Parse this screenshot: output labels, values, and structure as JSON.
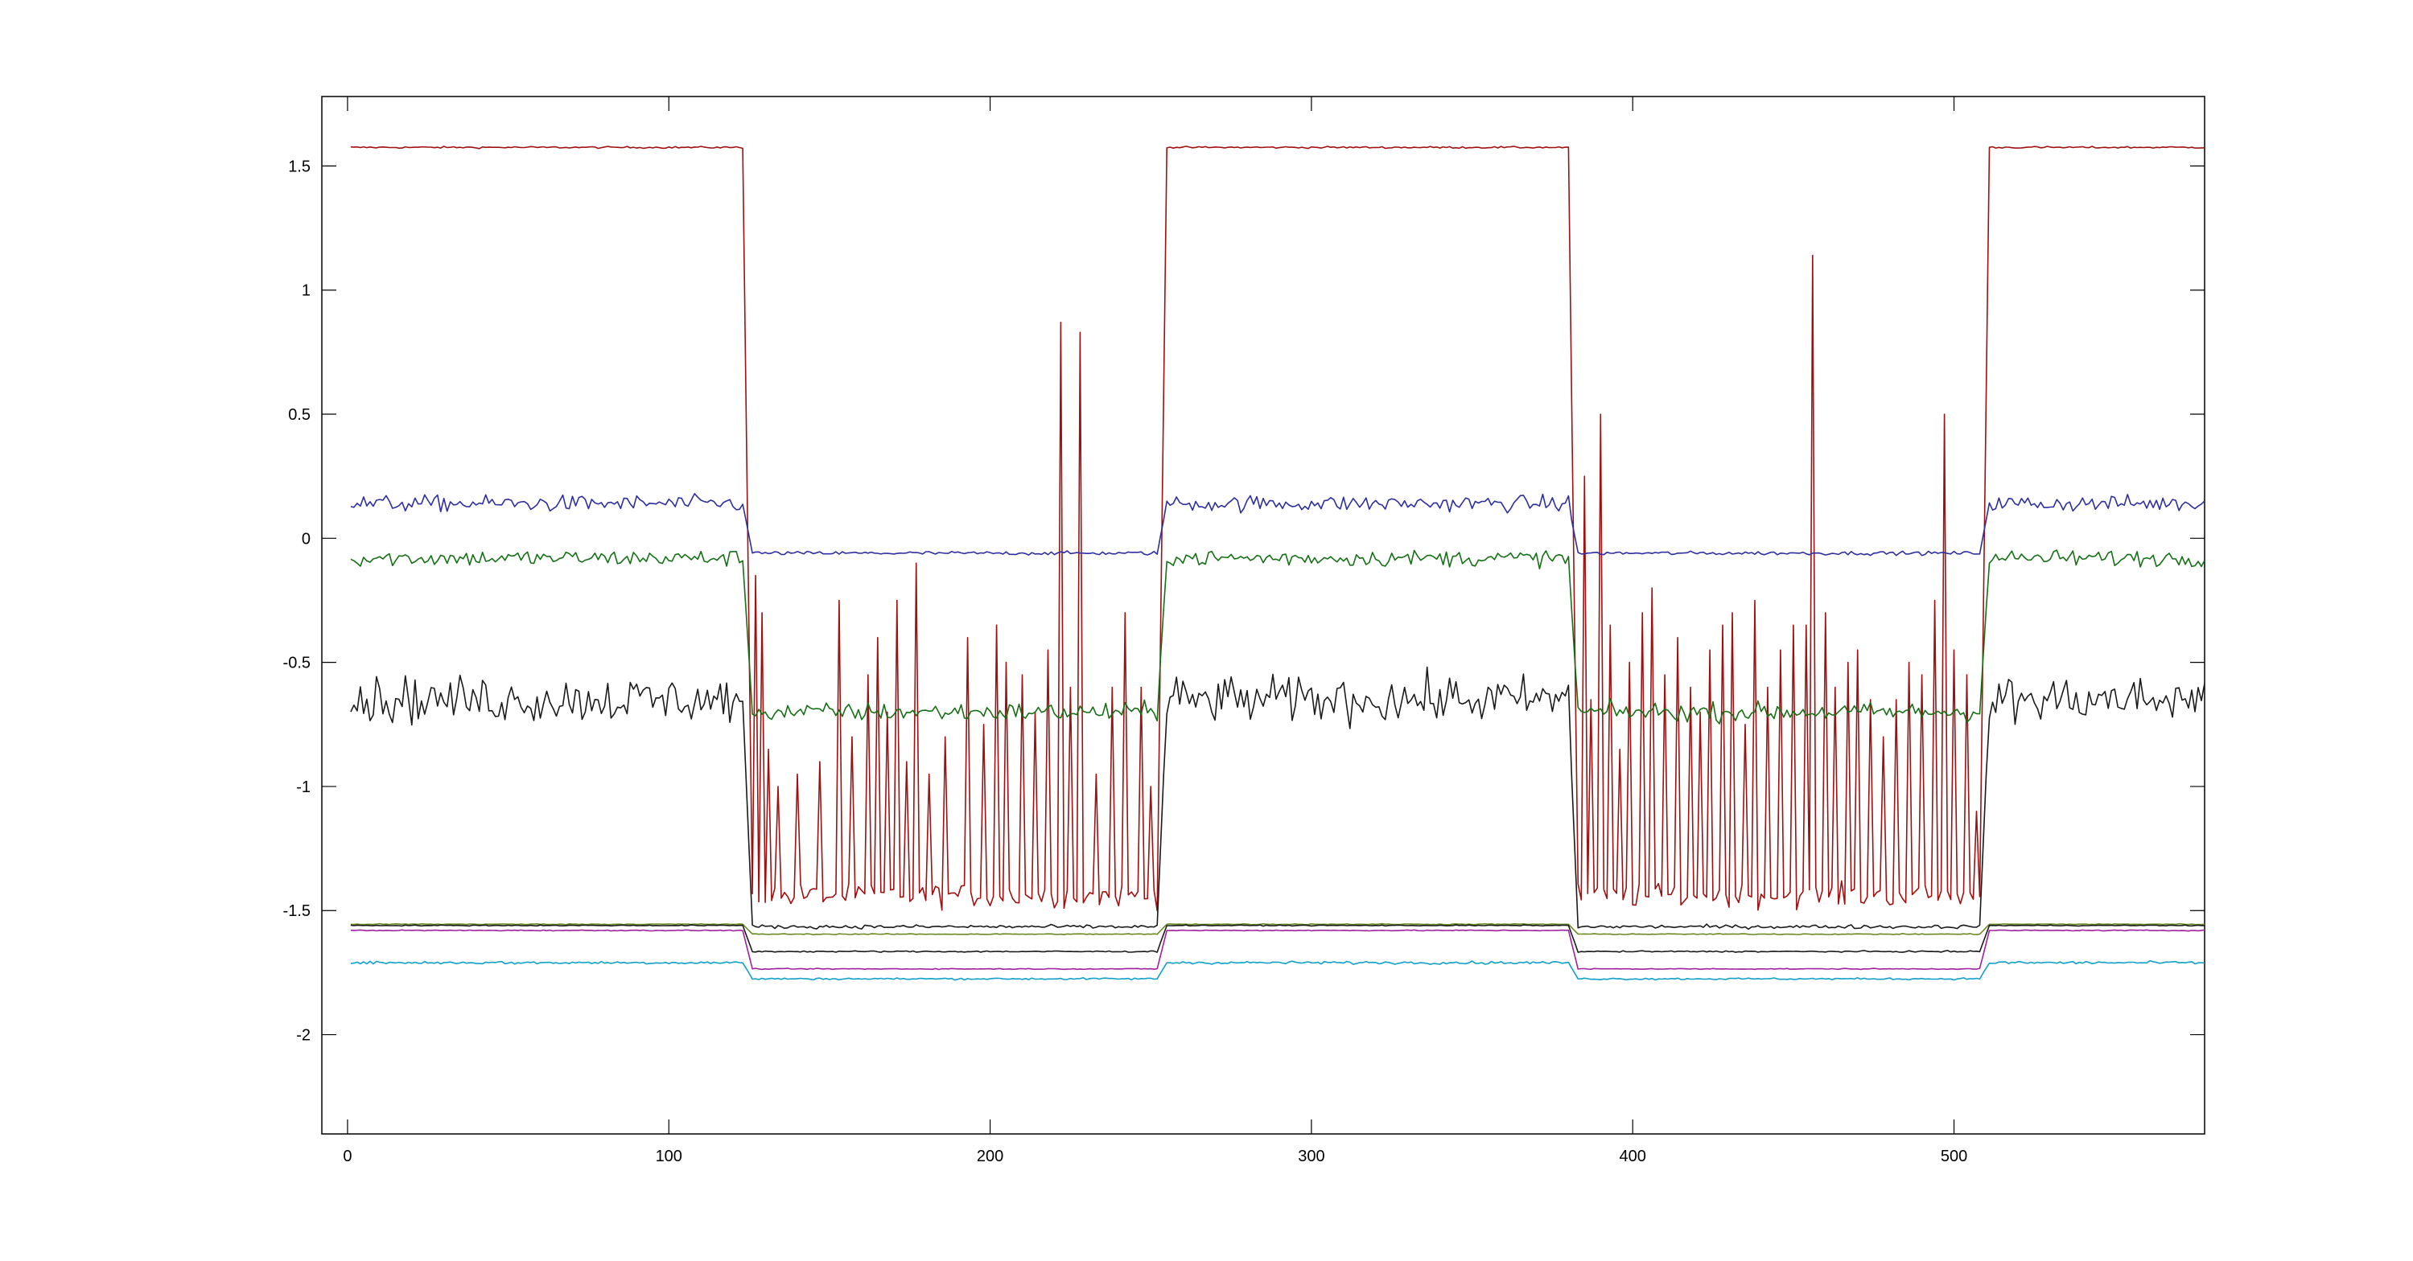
{
  "chart_data": {
    "type": "line",
    "title": "",
    "xlabel": "",
    "ylabel": "",
    "xlim": [
      -8,
      578
    ],
    "ylim": [
      -2.4,
      1.78
    ],
    "x_ticks": [
      0,
      100,
      200,
      300,
      400,
      500
    ],
    "y_ticks": [
      1.5,
      1,
      0.5,
      0,
      -0.5,
      -1,
      -1.5,
      -2
    ],
    "x_tick_labels": [
      "0",
      "100",
      "200",
      "300",
      "400",
      "500"
    ],
    "y_tick_labels": [
      "1.5",
      "1",
      "0.5",
      "0",
      "-0.5",
      "-1",
      "-1.5",
      "-2"
    ],
    "grid": false,
    "legend": "none",
    "x_range": [
      1,
      578
    ],
    "state_segments": [
      {
        "state": "high",
        "x": [
          1,
          123
        ]
      },
      {
        "state": "low",
        "x": [
          126,
          252
        ]
      },
      {
        "state": "high",
        "x": [
          255,
          380
        ]
      },
      {
        "state": "low",
        "x": [
          383,
          508
        ]
      },
      {
        "state": "high",
        "x": [
          511,
          578
        ]
      }
    ],
    "series": [
      {
        "color": "#a01010",
        "high_level": 1.575,
        "low_level": -1.44,
        "high_noise": 0.004,
        "low_noise": 0.05,
        "low_spikes": [
          [
            127,
            -0.15
          ],
          [
            129,
            -0.3
          ],
          [
            131,
            -0.85
          ],
          [
            134,
            -1.0
          ],
          [
            140,
            -0.95
          ],
          [
            147,
            -0.9
          ],
          [
            153,
            -0.25
          ],
          [
            157,
            -0.8
          ],
          [
            162,
            -0.55
          ],
          [
            165,
            -0.4
          ],
          [
            168,
            -0.7
          ],
          [
            171,
            -0.25
          ],
          [
            174,
            -0.9
          ],
          [
            177,
            -0.1
          ],
          [
            181,
            -0.95
          ],
          [
            186,
            -0.8
          ],
          [
            193,
            -0.4
          ],
          [
            198,
            -0.75
          ],
          [
            202,
            -0.35
          ],
          [
            205,
            -0.5
          ],
          [
            210,
            -0.55
          ],
          [
            214,
            -0.7
          ],
          [
            218,
            -0.45
          ],
          [
            222,
            0.87
          ],
          [
            225,
            -0.6
          ],
          [
            228,
            0.83
          ],
          [
            233,
            -0.95
          ],
          [
            238,
            -0.6
          ],
          [
            242,
            -0.3
          ],
          [
            247,
            -0.6
          ],
          [
            250,
            -1.0
          ],
          [
            385,
            0.25
          ],
          [
            387,
            -0.65
          ],
          [
            390,
            0.5
          ],
          [
            393,
            -0.35
          ],
          [
            396,
            -0.85
          ],
          [
            399,
            -0.5
          ],
          [
            403,
            -0.3
          ],
          [
            406,
            -0.2
          ],
          [
            410,
            -0.55
          ],
          [
            414,
            -0.4
          ],
          [
            418,
            -0.6
          ],
          [
            421,
            -0.7
          ],
          [
            424,
            -0.45
          ],
          [
            428,
            -0.35
          ],
          [
            431,
            -0.3
          ],
          [
            435,
            -0.75
          ],
          [
            438,
            -0.25
          ],
          [
            442,
            -0.6
          ],
          [
            446,
            -0.45
          ],
          [
            450,
            -0.35
          ],
          [
            454,
            -0.35
          ],
          [
            456,
            1.14
          ],
          [
            460,
            -0.3
          ],
          [
            463,
            -0.6
          ],
          [
            467,
            -0.5
          ],
          [
            470,
            -0.45
          ],
          [
            474,
            -0.65
          ],
          [
            478,
            -0.8
          ],
          [
            482,
            -0.65
          ],
          [
            486,
            -0.5
          ],
          [
            490,
            -0.55
          ],
          [
            494,
            -0.25
          ],
          [
            497,
            0.5
          ],
          [
            500,
            -0.45
          ],
          [
            504,
            -0.55
          ],
          [
            507,
            -1.1
          ]
        ]
      },
      {
        "color": "#2e2ea0",
        "high_level": 0.14,
        "low_level": -0.06,
        "high_noise": 0.035,
        "low_noise": 0.008
      },
      {
        "color": "#157015",
        "high_level": -0.08,
        "low_level": -0.7,
        "high_noise": 0.035,
        "low_noise": 0.04
      },
      {
        "color": "#1a1a1a",
        "high_level": -0.65,
        "low_level": -1.565,
        "high_noise": 0.1,
        "low_noise": 0.008
      },
      {
        "color": "#6a8a20",
        "high_level": -1.555,
        "low_level": -1.595,
        "high_noise": 0.002,
        "low_noise": 0.002
      },
      {
        "color": "#1a1a1a",
        "high_level": -1.56,
        "low_level": -1.665,
        "high_noise": 0.002,
        "low_noise": 0.003
      },
      {
        "color": "#a020a0",
        "high_level": -1.58,
        "low_level": -1.735,
        "high_noise": 0.002,
        "low_noise": 0.002
      },
      {
        "color": "#10a0c8",
        "high_level": -1.71,
        "low_level": -1.775,
        "high_noise": 0.006,
        "low_noise": 0.004
      }
    ]
  }
}
